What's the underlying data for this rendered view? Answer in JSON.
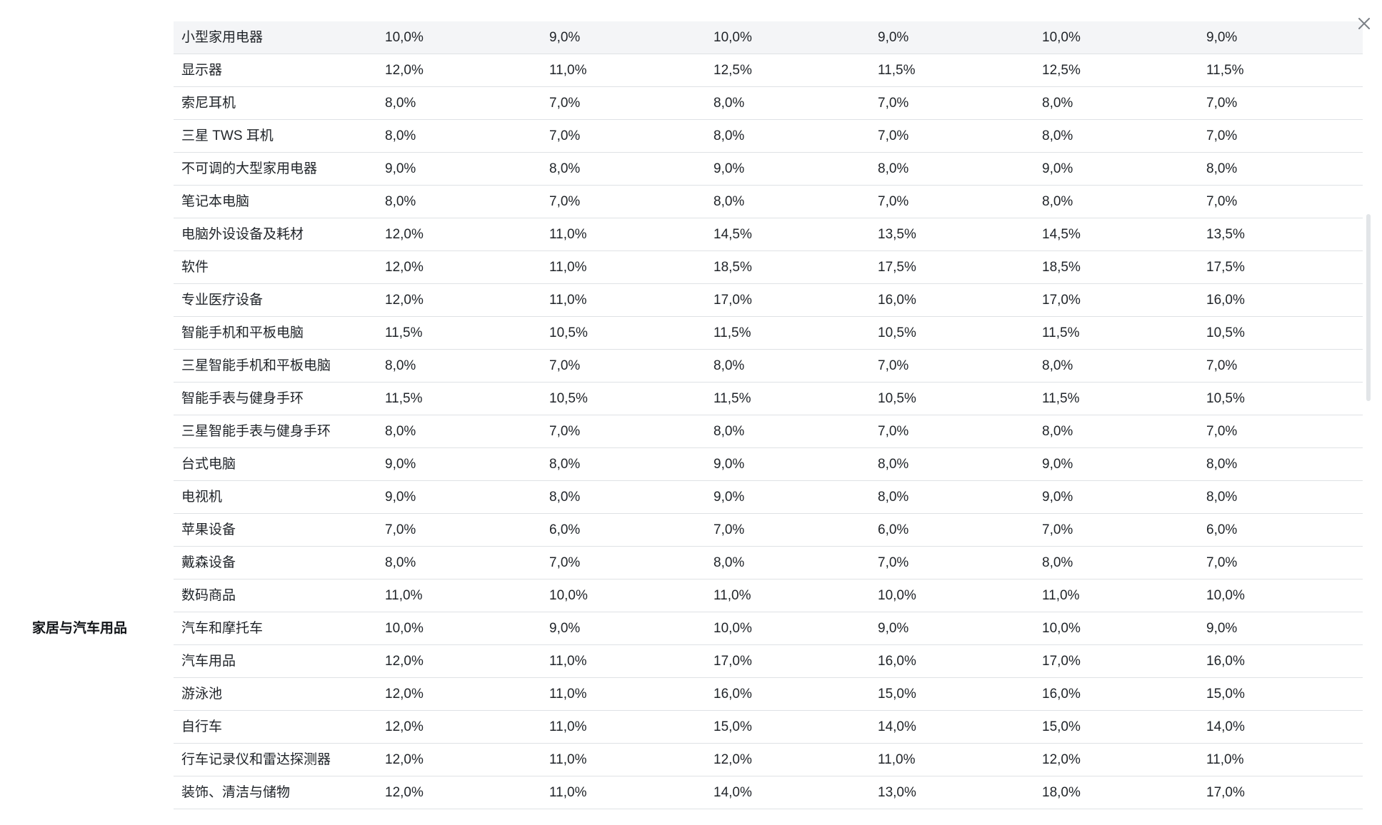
{
  "close_icon": "close-icon",
  "colors": {
    "row_border": "#dfe2e5",
    "shaded_row": "#f4f5f7",
    "text": "#1f2328",
    "scrollbar": "#e2e5e8"
  },
  "rows": [
    {
      "category": "",
      "subcategory": "小型家用电器",
      "values": [
        "10,0%",
        "9,0%",
        "10,0%",
        "9,0%",
        "10,0%",
        "9,0%"
      ]
    },
    {
      "category": "",
      "subcategory": "显示器",
      "values": [
        "12,0%",
        "11,0%",
        "12,5%",
        "11,5%",
        "12,5%",
        "11,5%"
      ]
    },
    {
      "category": "",
      "subcategory": "索尼耳机",
      "values": [
        "8,0%",
        "7,0%",
        "8,0%",
        "7,0%",
        "8,0%",
        "7,0%"
      ]
    },
    {
      "category": "",
      "subcategory": "三星 TWS 耳机",
      "values": [
        "8,0%",
        "7,0%",
        "8,0%",
        "7,0%",
        "8,0%",
        "7,0%"
      ]
    },
    {
      "category": "",
      "subcategory": "不可调的大型家用电器",
      "values": [
        "9,0%",
        "8,0%",
        "9,0%",
        "8,0%",
        "9,0%",
        "8,0%"
      ]
    },
    {
      "category": "",
      "subcategory": "笔记本电脑",
      "values": [
        "8,0%",
        "7,0%",
        "8,0%",
        "7,0%",
        "8,0%",
        "7,0%"
      ]
    },
    {
      "category": "",
      "subcategory": "电脑外设设备及耗材",
      "values": [
        "12,0%",
        "11,0%",
        "14,5%",
        "13,5%",
        "14,5%",
        "13,5%"
      ]
    },
    {
      "category": "",
      "subcategory": "软件",
      "values": [
        "12,0%",
        "11,0%",
        "18,5%",
        "17,5%",
        "18,5%",
        "17,5%"
      ]
    },
    {
      "category": "",
      "subcategory": "专业医疗设备",
      "values": [
        "12,0%",
        "11,0%",
        "17,0%",
        "16,0%",
        "17,0%",
        "16,0%"
      ]
    },
    {
      "category": "",
      "subcategory": "智能手机和平板电脑",
      "values": [
        "11,5%",
        "10,5%",
        "11,5%",
        "10,5%",
        "11,5%",
        "10,5%"
      ]
    },
    {
      "category": "",
      "subcategory": "三星智能手机和平板电脑",
      "values": [
        "8,0%",
        "7,0%",
        "8,0%",
        "7,0%",
        "8,0%",
        "7,0%"
      ]
    },
    {
      "category": "",
      "subcategory": "智能手表与健身手环",
      "values": [
        "11,5%",
        "10,5%",
        "11,5%",
        "10,5%",
        "11,5%",
        "10,5%"
      ]
    },
    {
      "category": "",
      "subcategory": "三星智能手表与健身手环",
      "values": [
        "8,0%",
        "7,0%",
        "8,0%",
        "7,0%",
        "8,0%",
        "7,0%"
      ]
    },
    {
      "category": "",
      "subcategory": "台式电脑",
      "values": [
        "9,0%",
        "8,0%",
        "9,0%",
        "8,0%",
        "9,0%",
        "8,0%"
      ]
    },
    {
      "category": "",
      "subcategory": "电视机",
      "values": [
        "9,0%",
        "8,0%",
        "9,0%",
        "8,0%",
        "9,0%",
        "8,0%"
      ]
    },
    {
      "category": "",
      "subcategory": "苹果设备",
      "values": [
        "7,0%",
        "6,0%",
        "7,0%",
        "6,0%",
        "7,0%",
        "6,0%"
      ]
    },
    {
      "category": "",
      "subcategory": "戴森设备",
      "values": [
        "8,0%",
        "7,0%",
        "8,0%",
        "7,0%",
        "8,0%",
        "7,0%"
      ]
    },
    {
      "category": "",
      "subcategory": "数码商品",
      "values": [
        "11,0%",
        "10,0%",
        "11,0%",
        "10,0%",
        "11,0%",
        "10,0%"
      ]
    },
    {
      "category": "家居与汽车用品",
      "subcategory": "汽车和摩托车",
      "values": [
        "10,0%",
        "9,0%",
        "10,0%",
        "9,0%",
        "10,0%",
        "9,0%"
      ]
    },
    {
      "category": "",
      "subcategory": "汽车用品",
      "values": [
        "12,0%",
        "11,0%",
        "17,0%",
        "16,0%",
        "17,0%",
        "16,0%"
      ]
    },
    {
      "category": "",
      "subcategory": "游泳池",
      "values": [
        "12,0%",
        "11,0%",
        "16,0%",
        "15,0%",
        "16,0%",
        "15,0%"
      ]
    },
    {
      "category": "",
      "subcategory": "自行车",
      "values": [
        "12,0%",
        "11,0%",
        "15,0%",
        "14,0%",
        "15,0%",
        "14,0%"
      ]
    },
    {
      "category": "",
      "subcategory": "行车记录仪和雷达探测器",
      "values": [
        "12,0%",
        "11,0%",
        "12,0%",
        "11,0%",
        "12,0%",
        "11,0%"
      ]
    },
    {
      "category": "",
      "subcategory": "装饰、清洁与储物",
      "values": [
        "12,0%",
        "11,0%",
        "14,0%",
        "13,0%",
        "18,0%",
        "17,0%"
      ]
    }
  ]
}
